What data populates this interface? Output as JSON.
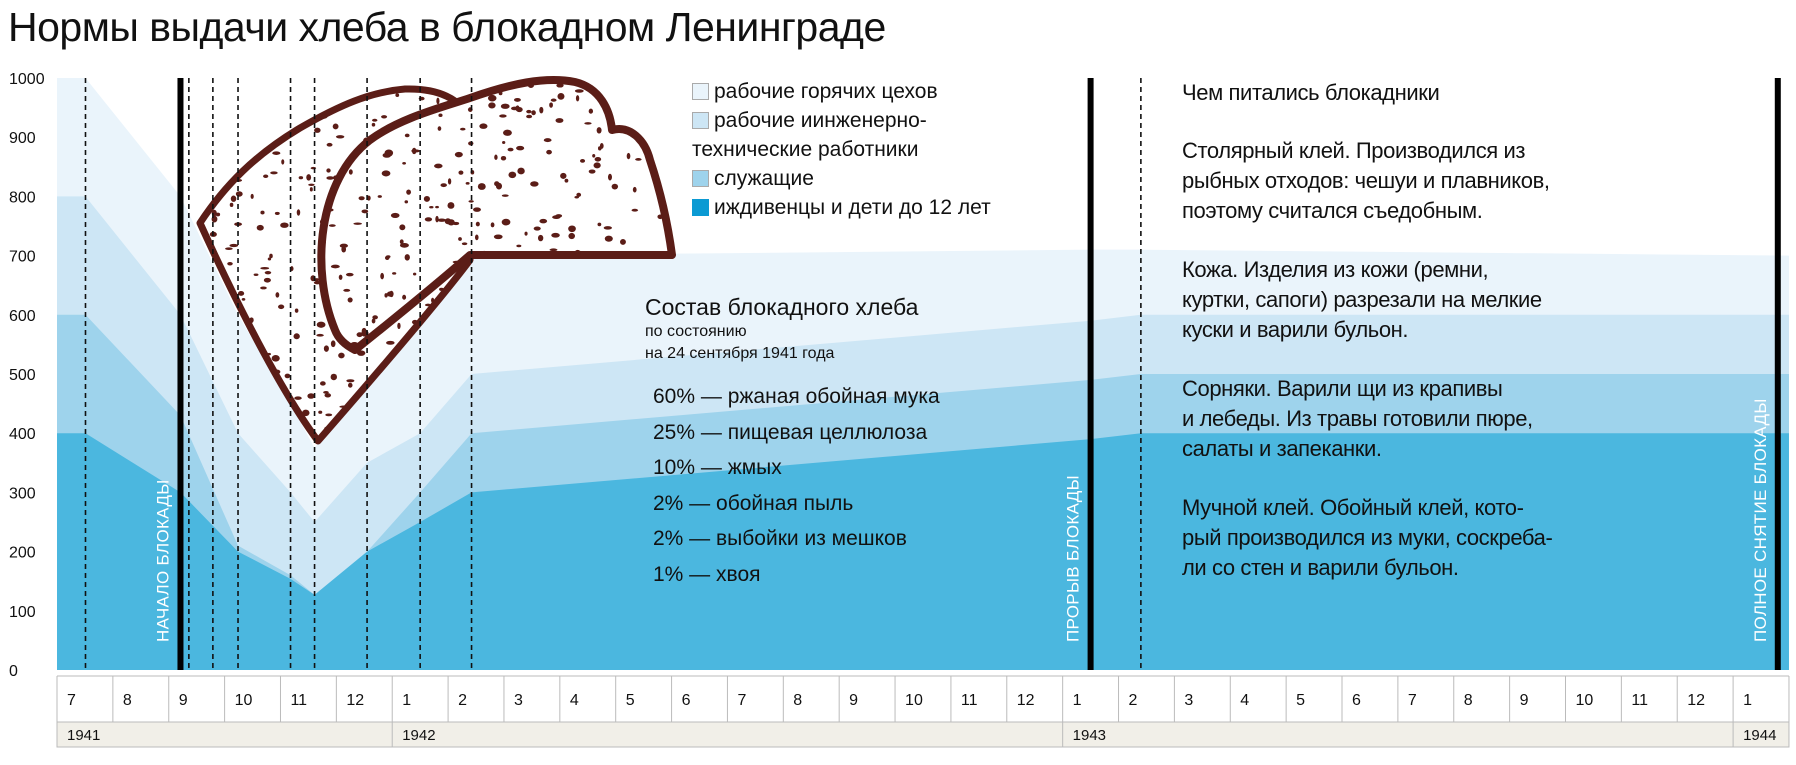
{
  "title": "Нормы выдачи хлеба в блокадном Ленинграде",
  "colors": {
    "hot_shop_workers": "#eaf4fb",
    "engineers": "#cde6f5",
    "employees": "#9ed3ec",
    "dependents": "#4bb7df",
    "bread_outline": "#5b1d17",
    "year_row_bg": "#f1efe8"
  },
  "chart_data": {
    "type": "area",
    "title": "Нормы выдачи хлеба в блокадном Ленинграде",
    "ylabel": "",
    "ylim": [
      0,
      1000
    ],
    "yticks": [
      "0",
      "100",
      "200",
      "300",
      "400",
      "500",
      "600",
      "700",
      "800",
      "900",
      "1000"
    ],
    "x_unit": "months since July 1941",
    "x": [
      0,
      0.51,
      2.21,
      3.24,
      4.18,
      4.61,
      5.55,
      6.5,
      7.42,
      18.5,
      19.4,
      31
    ],
    "series": [
      {
        "name": "рабочие горячих цехов",
        "color_key": "hot_shop_workers",
        "values": [
          1000,
          1000,
          800,
          600,
          450,
          375,
          500,
          600,
          700,
          710,
          710,
          700
        ]
      },
      {
        "name": "рабочие иинженерно-технические работники",
        "color_key": "engineers",
        "values": [
          800,
          800,
          600,
          400,
          300,
          250,
          350,
          400,
          500,
          590,
          600,
          600
        ]
      },
      {
        "name": "служащие",
        "color_key": "employees",
        "values": [
          600,
          600,
          430,
          210,
          160,
          127,
          200,
          300,
          400,
          490,
          500,
          500
        ]
      },
      {
        "name": "иждивенцы и дети до 12 лет",
        "color_key": "dependents",
        "values": [
          400,
          400,
          300,
          200,
          154,
          127,
          200,
          250,
          300,
          390,
          400,
          400
        ]
      }
    ],
    "dashed_markers": [
      0.51,
      2.36,
      2.79,
      3.24,
      4.18,
      4.61,
      5.55,
      6.5,
      7.42,
      19.4
    ],
    "events": [
      {
        "x": 2.21,
        "label": "НАЧАЛО БЛОКАДЫ"
      },
      {
        "x": 18.5,
        "label": "ПРОРЫВ БЛОКАДЫ"
      },
      {
        "x": 30.8,
        "label": "ПОЛНОЕ СНЯТИЕ БЛОКАДЫ"
      }
    ],
    "months": [
      "7",
      "8",
      "9",
      "10",
      "11",
      "12",
      "1",
      "2",
      "3",
      "4",
      "5",
      "6",
      "7",
      "8",
      "9",
      "10",
      "11",
      "12",
      "1",
      "2",
      "3",
      "4",
      "5",
      "6",
      "7",
      "8",
      "9",
      "10",
      "11",
      "12",
      "1"
    ],
    "years": [
      {
        "label": "1941",
        "start": 0,
        "end": 6
      },
      {
        "label": "1942",
        "start": 6,
        "end": 18
      },
      {
        "label": "1943",
        "start": 18,
        "end": 30
      },
      {
        "label": "1944",
        "start": 30,
        "end": 31
      }
    ]
  },
  "legend": {
    "items": [
      {
        "label": "рабочие горячих цехов"
      },
      {
        "label": "рабочие иинженерно-",
        "label_cont": "технические работники"
      },
      {
        "label": "служащие"
      },
      {
        "label": "иждивенцы и дети до 12 лет"
      }
    ]
  },
  "composition": {
    "title": "Состав блокадного хлеба",
    "subtitle1": "по состоянию",
    "subtitle2": "на 24 сентября 1941 года",
    "items": [
      "60% — ржаная обойная мука",
      "25% — пищевая целлюлоза",
      "10% — жмых",
      "2% — обойная пыль",
      "2% — выбойки из мешков",
      "1% — хвоя"
    ]
  },
  "notes": {
    "title": "Чем питались блокадники",
    "paragraphs": [
      {
        "lines": [
          "Столярный клей. Производился из",
          "рыбных отходов: чешуи и плавников,",
          "поэтому считался съедобным."
        ]
      },
      {
        "lines": [
          "Кожа. Изделия из кожи (ремни,",
          "куртки, сапоги) разрезали на мелкие",
          "куски и варили бульон."
        ]
      },
      {
        "lines": [
          "Сорняки. Варили щи из крапивы",
          "и лебеды. Из травы готовили пюре,",
          "салаты и запеканки."
        ]
      },
      {
        "lines": [
          "Мучной клей. Обойный клей, кото-",
          "рый производился из муки, соскреба-",
          "ли со стен и варили бульон."
        ]
      }
    ]
  }
}
